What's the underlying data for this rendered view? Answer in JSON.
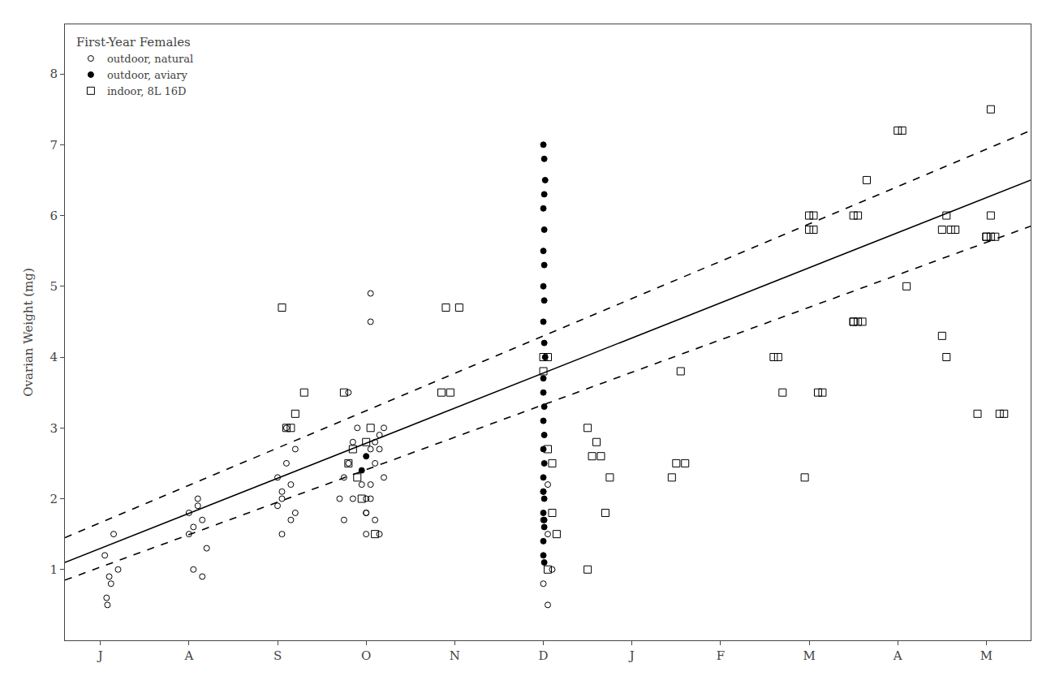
{
  "chart_data": {
    "type": "scatter",
    "ylabel": "Ovarian Weight (mg)",
    "legend_title": "First-Year Females",
    "legend": "upper left",
    "grid": false,
    "xlim": [
      -0.4,
      10.5
    ],
    "xticks": [
      {
        "value": 0,
        "label": "J"
      },
      {
        "value": 1,
        "label": "A"
      },
      {
        "value": 2,
        "label": "S"
      },
      {
        "value": 3,
        "label": "O"
      },
      {
        "value": 4,
        "label": "N"
      },
      {
        "value": 5,
        "label": "D"
      },
      {
        "value": 6,
        "label": "J"
      },
      {
        "value": 7,
        "label": "F"
      },
      {
        "value": 8,
        "label": "M"
      },
      {
        "value": 9,
        "label": "A"
      },
      {
        "value": 10,
        "label": "M"
      }
    ],
    "ylim": [
      0,
      8.7
    ],
    "yticks": [
      1,
      2,
      3,
      4,
      5,
      6,
      7,
      8
    ],
    "series": [
      {
        "name": "outdoor, natural",
        "type": "scatter",
        "marker": "circle-open",
        "color": "black",
        "x": [
          0.05,
          0.1,
          0.08,
          0.12,
          0.15,
          0.2,
          0.07,
          1.0,
          1.05,
          1.1,
          1.15,
          1.2,
          1.05,
          1.1,
          1.0,
          1.15,
          2.0,
          2.05,
          2.1,
          2.15,
          2.2,
          2.05,
          2.1,
          2.15,
          2.2,
          2.0,
          2.05,
          2.7,
          2.75,
          2.8,
          2.85,
          2.9,
          2.95,
          3.0,
          3.05,
          2.75,
          2.8,
          2.85,
          3.0,
          3.05,
          3.1,
          3.15,
          3.2,
          3.0,
          3.05,
          3.1,
          3.15,
          3.2,
          3.05,
          3.1,
          3.15,
          3.0,
          3.05,
          5.0,
          5.05,
          5.1,
          5.05,
          5.0,
          5.05
        ],
        "values": [
          1.2,
          0.9,
          0.5,
          0.8,
          1.5,
          1.0,
          0.6,
          1.8,
          1.6,
          2.0,
          1.7,
          1.3,
          1.0,
          1.9,
          1.5,
          0.9,
          2.3,
          2.0,
          2.5,
          2.2,
          1.8,
          1.5,
          3.0,
          1.7,
          2.7,
          1.9,
          2.1,
          2.0,
          2.3,
          2.5,
          2.8,
          3.0,
          2.2,
          1.5,
          4.9,
          1.7,
          3.5,
          2.0,
          1.8,
          2.2,
          2.5,
          2.7,
          3.0,
          2.0,
          4.5,
          2.8,
          2.9,
          2.3,
          2.7,
          1.7,
          1.5,
          1.8,
          2.0,
          1.7,
          2.2,
          1.0,
          1.5,
          0.8,
          0.5
        ]
      },
      {
        "name": "outdoor, aviary",
        "type": "scatter",
        "marker": "circle",
        "color": "black",
        "x": [
          2.95,
          3.0,
          5.0,
          5.01,
          5.02,
          5.01,
          5.0,
          5.01,
          5.0,
          5.01,
          5.0,
          5.01,
          5.0,
          5.01,
          5.02,
          5.0,
          5.0,
          5.01,
          5.0,
          5.01,
          5.0,
          5.01,
          5.0,
          5.0,
          5.01,
          5.0,
          5.01,
          5.0,
          5.0,
          5.01,
          5.0,
          5.01
        ],
        "values": [
          2.4,
          2.6,
          7.0,
          6.8,
          6.5,
          6.3,
          6.1,
          5.8,
          5.5,
          5.3,
          5.0,
          4.8,
          4.5,
          4.2,
          4.0,
          3.7,
          3.5,
          3.3,
          3.1,
          2.9,
          2.7,
          2.5,
          2.3,
          2.1,
          2.0,
          1.8,
          1.6,
          1.4,
          1.2,
          1.1,
          2.1,
          1.7
        ]
      },
      {
        "name": "indoor, 8L 16D",
        "type": "scatter",
        "marker": "square-open",
        "color": "black",
        "x": [
          2.1,
          2.2,
          2.3,
          2.15,
          2.05,
          2.8,
          2.85,
          2.9,
          3.0,
          3.05,
          2.95,
          3.1,
          2.75,
          3.85,
          3.95,
          4.05,
          3.9,
          5.0,
          5.05,
          5.1,
          5.15,
          5.05,
          5.1,
          5.05,
          5.0,
          5.5,
          5.6,
          5.55,
          5.65,
          5.7,
          5.75,
          5.5,
          6.45,
          6.5,
          6.55,
          6.6,
          7.6,
          7.65,
          7.7,
          8.0,
          8.05,
          8.0,
          8.05,
          8.1,
          8.15,
          7.95,
          8.5,
          8.55,
          8.6,
          8.65,
          8.5,
          8.55,
          8.5,
          9.0,
          9.05,
          9.1,
          9.5,
          9.55,
          9.6,
          9.65,
          9.5,
          9.55,
          9.9,
          10.0,
          10.05,
          10.1,
          10.0,
          10.05,
          10.15,
          10.2,
          10.05
        ],
        "values": [
          3.0,
          3.2,
          3.5,
          3.0,
          4.7,
          2.5,
          2.7,
          2.3,
          2.8,
          3.0,
          2.0,
          1.5,
          3.5,
          3.5,
          3.5,
          4.7,
          4.7,
          4.0,
          4.0,
          2.5,
          1.5,
          2.7,
          1.8,
          1.0,
          3.8,
          3.0,
          2.8,
          2.6,
          2.6,
          1.8,
          2.3,
          1.0,
          2.3,
          2.5,
          3.8,
          2.5,
          4.0,
          4.0,
          3.5,
          6.0,
          6.0,
          5.8,
          5.8,
          3.5,
          3.5,
          2.3,
          4.5,
          4.5,
          4.5,
          6.5,
          6.0,
          6.0,
          4.5,
          7.2,
          7.2,
          5.0,
          4.3,
          4.0,
          5.8,
          5.8,
          5.8,
          6.0,
          3.2,
          5.7,
          5.7,
          5.7,
          5.7,
          6.0,
          3.2,
          3.2,
          7.5
        ]
      },
      {
        "type": "line",
        "line_style": "solid",
        "color": "black",
        "x": [
          -0.4,
          10.5
        ],
        "values": [
          1.1,
          6.5
        ]
      },
      {
        "type": "line",
        "line_style": "dashed",
        "color": "black",
        "x": [
          -0.4,
          10.5
        ],
        "values": [
          1.45,
          7.2
        ]
      },
      {
        "type": "line",
        "line_style": "dashed",
        "color": "black",
        "x": [
          -0.4,
          10.5
        ],
        "values": [
          0.85,
          5.85
        ]
      }
    ]
  }
}
